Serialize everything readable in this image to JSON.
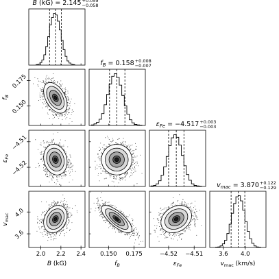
{
  "chart_data": {
    "type": "corner",
    "parameters": [
      {
        "name": "B",
        "axis_label_main": "B",
        "axis_label_sub": "",
        "axis_label_unit": " (kG)",
        "title_main": "B (kG) = 2.145",
        "title_sub": "",
        "title_plus": "+0.059",
        "title_minus": "−0.058",
        "median": 2.145,
        "err_plus": 0.059,
        "err_minus": 0.058,
        "range": [
          1.88,
          2.44
        ],
        "ticks": [
          2.0,
          2.2,
          2.4
        ],
        "tick_labels": [
          "2.0",
          "2.2",
          "2.4"
        ]
      },
      {
        "name": "f_B",
        "axis_label_main": "f",
        "axis_label_sub": "B",
        "axis_label_unit": "",
        "title_main": "f",
        "title_sub": "B",
        "title_rest": " = 0.158",
        "title_plus": "+0.008",
        "title_minus": "−0.007",
        "median": 0.158,
        "err_plus": 0.008,
        "err_minus": 0.007,
        "range": [
          0.131,
          0.186
        ],
        "ticks": [
          0.15,
          0.175
        ],
        "tick_labels": [
          "0.150",
          "0.175"
        ]
      },
      {
        "name": "epsilon_Fe",
        "axis_label_main": "ε",
        "axis_label_sub": "Fe",
        "axis_label_unit": "",
        "title_main": "ε",
        "title_sub": "Fe",
        "title_rest": " = −4.517",
        "title_plus": "+0.003",
        "title_minus": "−0.003",
        "median": -4.517,
        "err_plus": 0.003,
        "err_minus": 0.003,
        "range": [
          -4.5275,
          -4.5055
        ],
        "ticks": [
          -4.52,
          -4.51
        ],
        "tick_labels": [
          "−4.52",
          "−4.51"
        ]
      },
      {
        "name": "v_mac",
        "axis_label_main": "v",
        "axis_label_sub": "mac",
        "axis_label_unit": " (km/s)",
        "title_main": "v",
        "title_sub": "mac",
        "title_rest": " = 3.870",
        "title_plus": "+0.122",
        "title_minus": "−0.129",
        "median": 3.87,
        "err_plus": 0.122,
        "err_minus": 0.129,
        "range": [
          3.35,
          4.38
        ],
        "ticks": [
          3.6,
          4.0
        ],
        "tick_labels": [
          "3.6",
          "4.0"
        ]
      }
    ],
    "correlations": {
      "1,0": -0.45,
      "2,0": -0.15,
      "2,1": 0.0,
      "3,0": 0.25,
      "3,1": -0.75,
      "3,2": 0.25
    },
    "histograms": [
      [
        0.01,
        0.02,
        0.05,
        0.1,
        0.2,
        0.36,
        0.55,
        0.78,
        0.92,
        1.0,
        0.97,
        0.85,
        0.68,
        0.48,
        0.3,
        0.17,
        0.08,
        0.04,
        0.02,
        0.01
      ],
      [
        0.01,
        0.03,
        0.06,
        0.12,
        0.23,
        0.4,
        0.6,
        0.8,
        0.95,
        1.0,
        0.93,
        0.78,
        0.58,
        0.38,
        0.22,
        0.11,
        0.05,
        0.02,
        0.01,
        0.005
      ],
      [
        0.01,
        0.02,
        0.05,
        0.11,
        0.22,
        0.38,
        0.58,
        0.79,
        0.94,
        1.0,
        0.95,
        0.8,
        0.6,
        0.4,
        0.23,
        0.12,
        0.05,
        0.02,
        0.01,
        0.005
      ],
      [
        0.005,
        0.01,
        0.03,
        0.07,
        0.14,
        0.27,
        0.45,
        0.66,
        0.85,
        0.98,
        1.0,
        0.9,
        0.72,
        0.5,
        0.31,
        0.17,
        0.08,
        0.03,
        0.01,
        0.005
      ]
    ],
    "quantile_lines": "median and ±1σ dashed",
    "hist_color": "#000000",
    "point_color": "#000000"
  }
}
